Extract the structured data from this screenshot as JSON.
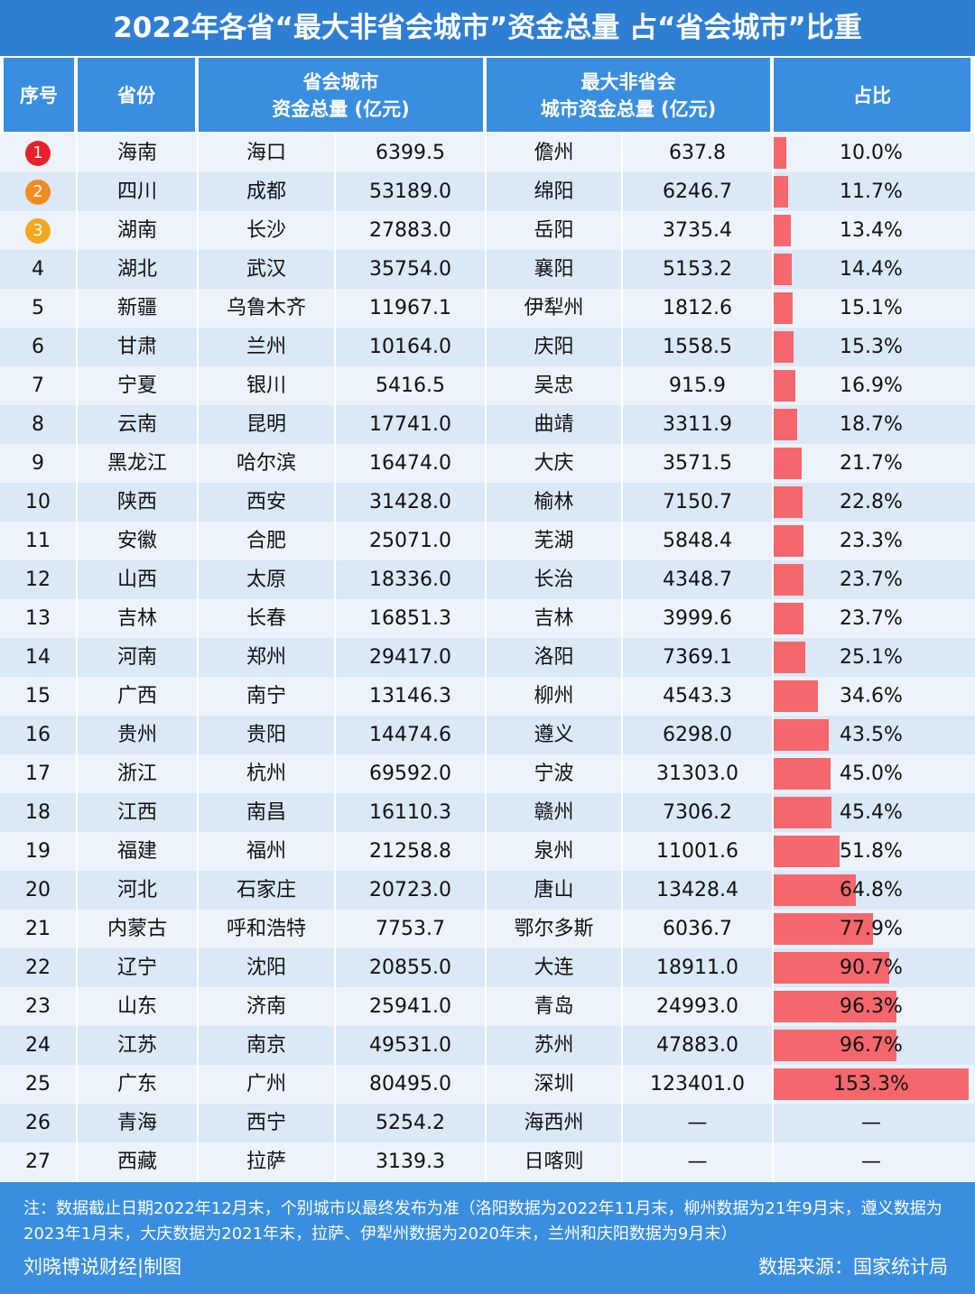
{
  "title": "2022年各省“最大非省会城市”资金总量 占“省会城市”比重",
  "header": {
    "rank": "序号",
    "province": "省份",
    "capital": [
      "省会城市",
      "资金总量 (亿元)"
    ],
    "city": [
      "最大非省会",
      "城市资金总量 (亿元)"
    ],
    "share": "占比"
  },
  "medal_colors": [
    "#e8212b",
    "#f28a22",
    "#f2a91c"
  ],
  "bar_color": "#f4676d",
  "table": {
    "rows": [
      {
        "rank": 1,
        "province": "海南",
        "capital": "海口",
        "capital_total": "6399.5",
        "city": "儋州",
        "city_total": "637.8",
        "share": {
          "value": 10.0,
          "label": "10.0%"
        }
      },
      {
        "rank": 2,
        "province": "四川",
        "capital": "成都",
        "capital_total": "53189.0",
        "city": "绵阳",
        "city_total": "6246.7",
        "share": {
          "value": 11.7,
          "label": "11.7%"
        }
      },
      {
        "rank": 3,
        "province": "湖南",
        "capital": "长沙",
        "capital_total": "27883.0",
        "city": "岳阳",
        "city_total": "3735.4",
        "share": {
          "value": 13.4,
          "label": "13.4%"
        }
      },
      {
        "rank": 4,
        "province": "湖北",
        "capital": "武汉",
        "capital_total": "35754.0",
        "city": "襄阳",
        "city_total": "5153.2",
        "share": {
          "value": 14.4,
          "label": "14.4%"
        }
      },
      {
        "rank": 5,
        "province": "新疆",
        "capital": "乌鲁木齐",
        "capital_total": "11967.1",
        "city": "伊犁州",
        "city_total": "1812.6",
        "share": {
          "value": 15.1,
          "label": "15.1%"
        }
      },
      {
        "rank": 6,
        "province": "甘肃",
        "capital": "兰州",
        "capital_total": "10164.0",
        "city": "庆阳",
        "city_total": "1558.5",
        "share": {
          "value": 15.3,
          "label": "15.3%"
        }
      },
      {
        "rank": 7,
        "province": "宁夏",
        "capital": "银川",
        "capital_total": "5416.5",
        "city": "吴忠",
        "city_total": "915.9",
        "share": {
          "value": 16.9,
          "label": "16.9%"
        }
      },
      {
        "rank": 8,
        "province": "云南",
        "capital": "昆明",
        "capital_total": "17741.0",
        "city": "曲靖",
        "city_total": "3311.9",
        "share": {
          "value": 18.7,
          "label": "18.7%"
        }
      },
      {
        "rank": 9,
        "province": "黑龙江",
        "capital": "哈尔滨",
        "capital_total": "16474.0",
        "city": "大庆",
        "city_total": "3571.5",
        "share": {
          "value": 21.7,
          "label": "21.7%"
        }
      },
      {
        "rank": 10,
        "province": "陕西",
        "capital": "西安",
        "capital_total": "31428.0",
        "city": "榆林",
        "city_total": "7150.7",
        "share": {
          "value": 22.8,
          "label": "22.8%"
        }
      },
      {
        "rank": 11,
        "province": "安徽",
        "capital": "合肥",
        "capital_total": "25071.0",
        "city": "芜湖",
        "city_total": "5848.4",
        "share": {
          "value": 23.3,
          "label": "23.3%"
        }
      },
      {
        "rank": 12,
        "province": "山西",
        "capital": "太原",
        "capital_total": "18336.0",
        "city": "长治",
        "city_total": "4348.7",
        "share": {
          "value": 23.7,
          "label": "23.7%"
        }
      },
      {
        "rank": 13,
        "province": "吉林",
        "capital": "长春",
        "capital_total": "16851.3",
        "city": "吉林",
        "city_total": "3999.6",
        "share": {
          "value": 23.7,
          "label": "23.7%"
        }
      },
      {
        "rank": 14,
        "province": "河南",
        "capital": "郑州",
        "capital_total": "29417.0",
        "city": "洛阳",
        "city_total": "7369.1",
        "share": {
          "value": 25.1,
          "label": "25.1%"
        }
      },
      {
        "rank": 15,
        "province": "广西",
        "capital": "南宁",
        "capital_total": "13146.3",
        "city": "柳州",
        "city_total": "4543.3",
        "share": {
          "value": 34.6,
          "label": "34.6%"
        }
      },
      {
        "rank": 16,
        "province": "贵州",
        "capital": "贵阳",
        "capital_total": "14474.6",
        "city": "遵义",
        "city_total": "6298.0",
        "share": {
          "value": 43.5,
          "label": "43.5%"
        }
      },
      {
        "rank": 17,
        "province": "浙江",
        "capital": "杭州",
        "capital_total": "69592.0",
        "city": "宁波",
        "city_total": "31303.0",
        "share": {
          "value": 45.0,
          "label": "45.0%"
        }
      },
      {
        "rank": 18,
        "province": "江西",
        "capital": "南昌",
        "capital_total": "16110.3",
        "city": "赣州",
        "city_total": "7306.2",
        "share": {
          "value": 45.4,
          "label": "45.4%"
        }
      },
      {
        "rank": 19,
        "province": "福建",
        "capital": "福州",
        "capital_total": "21258.8",
        "city": "泉州",
        "city_total": "11001.6",
        "share": {
          "value": 51.8,
          "label": "51.8%"
        }
      },
      {
        "rank": 20,
        "province": "河北",
        "capital": "石家庄",
        "capital_total": "20723.0",
        "city": "唐山",
        "city_total": "13428.4",
        "share": {
          "value": 64.8,
          "label": "64.8%"
        }
      },
      {
        "rank": 21,
        "province": "内蒙古",
        "capital": "呼和浩特",
        "capital_total": "7753.7",
        "city": "鄂尔多斯",
        "city_total": "6036.7",
        "share": {
          "value": 77.9,
          "label": "77.9%"
        }
      },
      {
        "rank": 22,
        "province": "辽宁",
        "capital": "沈阳",
        "capital_total": "20855.0",
        "city": "大连",
        "city_total": "18911.0",
        "share": {
          "value": 90.7,
          "label": "90.7%"
        }
      },
      {
        "rank": 23,
        "province": "山东",
        "capital": "济南",
        "capital_total": "25941.0",
        "city": "青岛",
        "city_total": "24993.0",
        "share": {
          "value": 96.3,
          "label": "96.3%"
        }
      },
      {
        "rank": 24,
        "province": "江苏",
        "capital": "南京",
        "capital_total": "49531.0",
        "city": "苏州",
        "city_total": "47883.0",
        "share": {
          "value": 96.7,
          "label": "96.7%"
        }
      },
      {
        "rank": 25,
        "province": "广东",
        "capital": "广州",
        "capital_total": "80495.0",
        "city": "深圳",
        "city_total": "123401.0",
        "share": {
          "value": 153.3,
          "label": "153.3%"
        }
      },
      {
        "rank": 26,
        "province": "青海",
        "capital": "西宁",
        "capital_total": "5254.2",
        "city": "海西州",
        "city_total": "—",
        "share": {
          "value": null,
          "label": "—"
        }
      },
      {
        "rank": 27,
        "province": "西藏",
        "capital": "拉萨",
        "capital_total": "3139.3",
        "city": "日喀则",
        "city_total": "—",
        "share": {
          "value": null,
          "label": "—"
        }
      }
    ]
  },
  "footer": {
    "note": "注：数据截止日期2022年12月末，个别城市以最终发布为准（洛阳数据为2022年11月末，柳州数据为21年9月末，遵义数据为2023年1月末，大庆数据为2021年末，拉萨、伊犁州数据为2020年末，兰州和庆阳数据为9月末）",
    "credit": "刘晓博说财经|制图",
    "source": "数据来源：国家统计局"
  }
}
